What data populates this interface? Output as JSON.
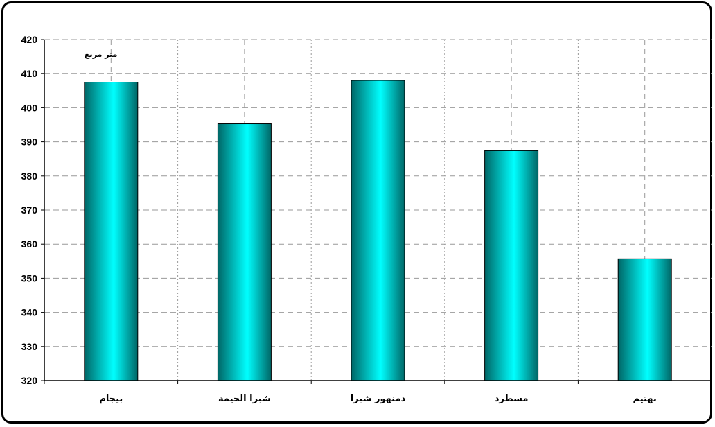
{
  "chart_data": {
    "type": "bar",
    "unit_label": "متر مربع",
    "categories": [
      "بيجام",
      "شبرا الخيمة",
      "دمنهور شبرا",
      "مسطرد",
      "بهتيم"
    ],
    "values": [
      407.5,
      395.3,
      408.0,
      387.4,
      355.7
    ],
    "ylim": [
      320,
      420
    ],
    "yticks": [
      320,
      330,
      340,
      350,
      360,
      370,
      380,
      390,
      400,
      410,
      420
    ],
    "grid": true,
    "legend": "none",
    "colors": {
      "bar_edge": "#006666",
      "bar_center": "#00ffff",
      "grid": "#999999",
      "axis": "#000000"
    }
  }
}
